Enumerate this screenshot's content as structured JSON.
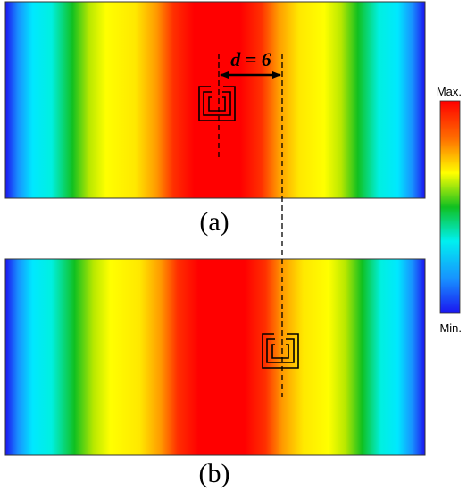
{
  "panels": {
    "a": {
      "label": "(a)"
    },
    "b": {
      "label": "(b)"
    }
  },
  "colorbar": {
    "max_label": "Max.",
    "min_label": "Min."
  },
  "distance": {
    "label": "d = 6"
  },
  "colormap": [
    "#1a14f0",
    "#00e0ff",
    "#10c020",
    "#ffff00",
    "#ff9a00",
    "#ff0000"
  ]
}
